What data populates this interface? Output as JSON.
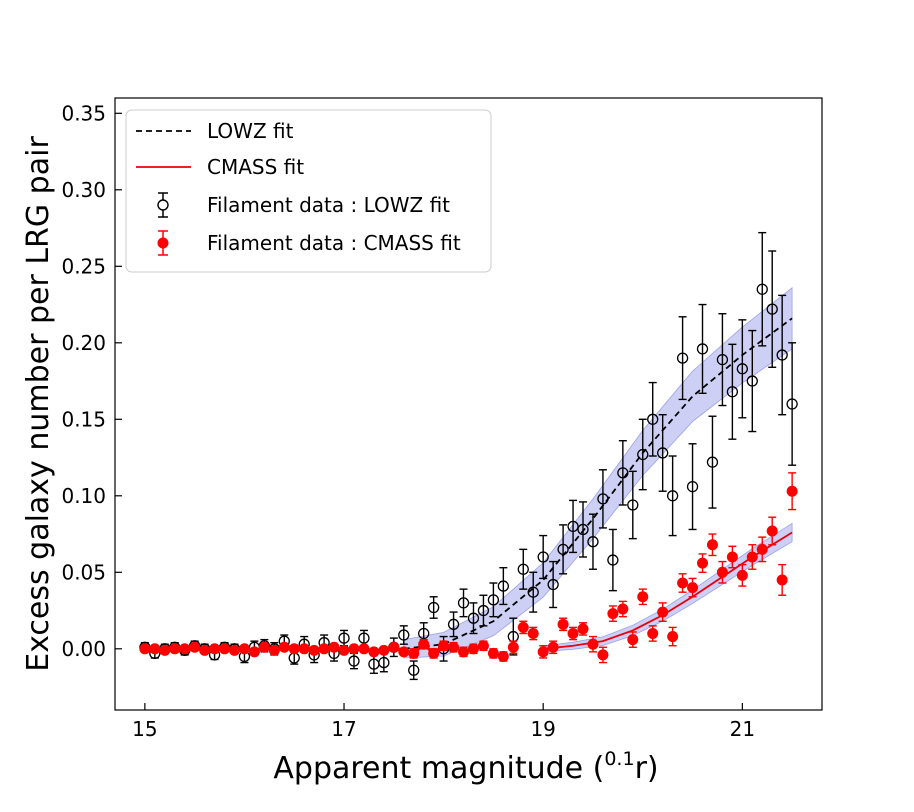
{
  "chart_data": {
    "type": "scatter",
    "xlabel": "Apparent magnitude (",
    "xlabel_sup": "0.1",
    "xlabel_suffix": "r)",
    "ylabel": "Excess galaxy number per LRG pair",
    "xlim": [
      14.7,
      21.8
    ],
    "ylim": [
      -0.04,
      0.36
    ],
    "xticks": [
      15,
      17,
      19,
      21
    ],
    "yticks": [
      0.0,
      0.05,
      0.1,
      0.15,
      0.2,
      0.25,
      0.3,
      0.35
    ],
    "ytick_labels": [
      "0.00",
      "0.05",
      "0.10",
      "0.15",
      "0.20",
      "0.25",
      "0.30",
      "0.35"
    ],
    "legend_position": "top-left",
    "legend": [
      {
        "label": "LOWZ fit",
        "kind": "dashed-line",
        "color": "#000000"
      },
      {
        "label": "CMASS fit",
        "kind": "solid-line",
        "color": "#e8000b"
      },
      {
        "label": "Filament data :  LOWZ fit",
        "kind": "open-marker",
        "color": "#000000"
      },
      {
        "label": "Filament data :  CMASS fit",
        "kind": "filled-marker",
        "color": "#ff0000"
      }
    ],
    "band_color": "#6f75e0",
    "series": [
      {
        "name": "Filament data :  LOWZ fit",
        "marker": "open-circle",
        "color": "#000000",
        "x": [
          15.0,
          15.1,
          15.2,
          15.3,
          15.4,
          15.5,
          15.6,
          15.7,
          15.8,
          15.9,
          16.0,
          16.1,
          16.2,
          16.3,
          16.4,
          16.5,
          16.6,
          16.7,
          16.8,
          16.9,
          17.0,
          17.1,
          17.2,
          17.3,
          17.4,
          17.5,
          17.6,
          17.7,
          17.8,
          17.9,
          18.0,
          18.1,
          18.2,
          18.3,
          18.4,
          18.5,
          18.6,
          18.7,
          18.8,
          18.9,
          19.0,
          19.1,
          19.2,
          19.3,
          19.4,
          19.5,
          19.6,
          19.7,
          19.8,
          19.9,
          20.0,
          20.1,
          20.2,
          20.3,
          20.4,
          20.5,
          20.6,
          20.7,
          20.8,
          20.9,
          21.0,
          21.1,
          21.2,
          21.3,
          21.4,
          21.5
        ],
        "y": [
          0.001,
          -0.003,
          0.0,
          0.001,
          -0.001,
          0.002,
          0.0,
          -0.004,
          0.001,
          0.0,
          -0.005,
          0.001,
          0.002,
          0.0,
          0.005,
          -0.006,
          0.003,
          -0.004,
          0.004,
          -0.003,
          0.007,
          -0.008,
          0.007,
          -0.01,
          -0.009,
          0.001,
          0.009,
          -0.014,
          0.01,
          0.027,
          0.0,
          0.016,
          0.03,
          0.02,
          0.025,
          0.032,
          0.041,
          0.008,
          0.052,
          0.037,
          0.06,
          0.042,
          0.065,
          0.08,
          0.078,
          0.07,
          0.098,
          0.058,
          0.115,
          0.094,
          0.127,
          0.15,
          0.128,
          0.1,
          0.19,
          0.106,
          0.196,
          0.122,
          0.189,
          0.168,
          0.183,
          0.175,
          0.235,
          0.222,
          0.192,
          0.16
        ],
        "err": [
          0.003,
          0.003,
          0.003,
          0.003,
          0.003,
          0.003,
          0.003,
          0.003,
          0.003,
          0.003,
          0.004,
          0.004,
          0.004,
          0.004,
          0.004,
          0.004,
          0.005,
          0.005,
          0.005,
          0.005,
          0.005,
          0.005,
          0.005,
          0.006,
          0.006,
          0.006,
          0.006,
          0.006,
          0.007,
          0.007,
          0.008,
          0.008,
          0.009,
          0.01,
          0.01,
          0.011,
          0.012,
          0.012,
          0.013,
          0.013,
          0.014,
          0.015,
          0.016,
          0.017,
          0.018,
          0.018,
          0.019,
          0.02,
          0.021,
          0.022,
          0.023,
          0.024,
          0.025,
          0.026,
          0.027,
          0.028,
          0.029,
          0.03,
          0.03,
          0.031,
          0.032,
          0.033,
          0.037,
          0.038,
          0.039,
          0.04
        ]
      },
      {
        "name": "Filament data :  CMASS fit",
        "marker": "filled-circle",
        "color": "#ff0000",
        "x": [
          15.0,
          15.1,
          15.2,
          15.3,
          15.4,
          15.5,
          15.6,
          15.7,
          15.8,
          15.9,
          16.0,
          16.1,
          16.2,
          16.3,
          16.4,
          16.5,
          16.6,
          16.7,
          16.8,
          16.9,
          17.0,
          17.1,
          17.2,
          17.3,
          17.4,
          17.5,
          17.6,
          17.7,
          17.8,
          17.9,
          18.0,
          18.1,
          18.2,
          18.3,
          18.4,
          18.5,
          18.6,
          18.7,
          18.8,
          18.9,
          19.0,
          19.1,
          19.2,
          19.3,
          19.4,
          19.5,
          19.6,
          19.7,
          19.8,
          19.9,
          20.0,
          20.1,
          20.2,
          20.3,
          20.4,
          20.5,
          20.6,
          20.7,
          20.8,
          20.9,
          21.0,
          21.1,
          21.2,
          21.3,
          21.4,
          21.5
        ],
        "y": [
          0.0,
          0.0,
          -0.001,
          0.0,
          0.0,
          0.001,
          -0.001,
          0.0,
          0.0,
          -0.001,
          0.0,
          -0.002,
          0.001,
          -0.001,
          0.001,
          0.0,
          0.0,
          -0.001,
          0.0,
          0.001,
          -0.001,
          0.0,
          0.0,
          -0.002,
          -0.001,
          0.001,
          -0.002,
          -0.003,
          0.003,
          -0.003,
          0.002,
          0.001,
          -0.002,
          0.0,
          0.002,
          -0.003,
          -0.005,
          0.001,
          0.014,
          0.01,
          -0.002,
          0.001,
          0.016,
          0.01,
          0.013,
          0.003,
          -0.004,
          0.023,
          0.026,
          0.006,
          0.034,
          0.01,
          0.024,
          0.008,
          0.043,
          0.04,
          0.056,
          0.068,
          0.05,
          0.06,
          0.048,
          0.06,
          0.065,
          0.077,
          0.045,
          0.103
        ],
        "err": [
          0.002,
          0.002,
          0.002,
          0.002,
          0.002,
          0.002,
          0.002,
          0.002,
          0.002,
          0.002,
          0.002,
          0.002,
          0.002,
          0.002,
          0.002,
          0.002,
          0.002,
          0.002,
          0.002,
          0.002,
          0.002,
          0.002,
          0.002,
          0.002,
          0.002,
          0.002,
          0.002,
          0.003,
          0.003,
          0.003,
          0.003,
          0.003,
          0.003,
          0.003,
          0.003,
          0.003,
          0.003,
          0.004,
          0.004,
          0.004,
          0.004,
          0.004,
          0.004,
          0.004,
          0.004,
          0.005,
          0.005,
          0.005,
          0.005,
          0.005,
          0.005,
          0.005,
          0.006,
          0.006,
          0.006,
          0.006,
          0.006,
          0.007,
          0.007,
          0.007,
          0.007,
          0.008,
          0.008,
          0.009,
          0.01,
          0.012
        ]
      }
    ],
    "fits": [
      {
        "name": "LOWZ fit",
        "style": "dashed",
        "color": "#000000",
        "x": [
          17.6,
          18.0,
          18.5,
          19.0,
          19.5,
          20.0,
          20.5,
          21.0,
          21.5
        ],
        "y": [
          0.0,
          0.003,
          0.018,
          0.045,
          0.085,
          0.128,
          0.165,
          0.192,
          0.216
        ],
        "band": 0.02
      },
      {
        "name": "CMASS fit",
        "style": "solid",
        "color": "#e8000b",
        "x": [
          19.0,
          19.3,
          19.6,
          19.9,
          20.2,
          20.5,
          20.8,
          21.1,
          21.5
        ],
        "y": [
          0.0,
          0.002,
          0.005,
          0.012,
          0.022,
          0.034,
          0.047,
          0.06,
          0.076
        ],
        "band": 0.006
      }
    ]
  }
}
